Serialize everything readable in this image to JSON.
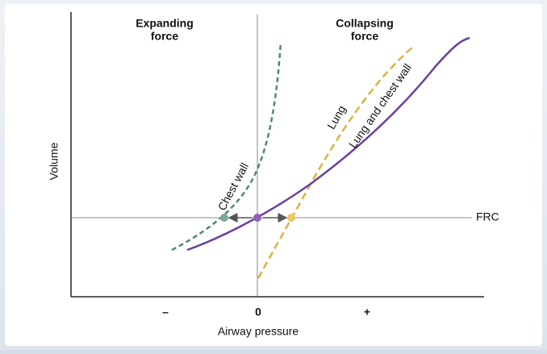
{
  "title_left": "Expanding force",
  "title_left_lines": [
    "Expanding",
    "force"
  ],
  "title_right_lines": [
    "Collapsing",
    "force"
  ],
  "y_axis_label": "Volume",
  "x_axis_label": "Airway pressure",
  "x_ticks": [
    "–",
    "0",
    "+"
  ],
  "reference_line_label": "FRC",
  "curves": [
    {
      "label": "Chest wall"
    },
    {
      "label": "Lung"
    },
    {
      "label": "Lung and chest wall"
    }
  ]
}
